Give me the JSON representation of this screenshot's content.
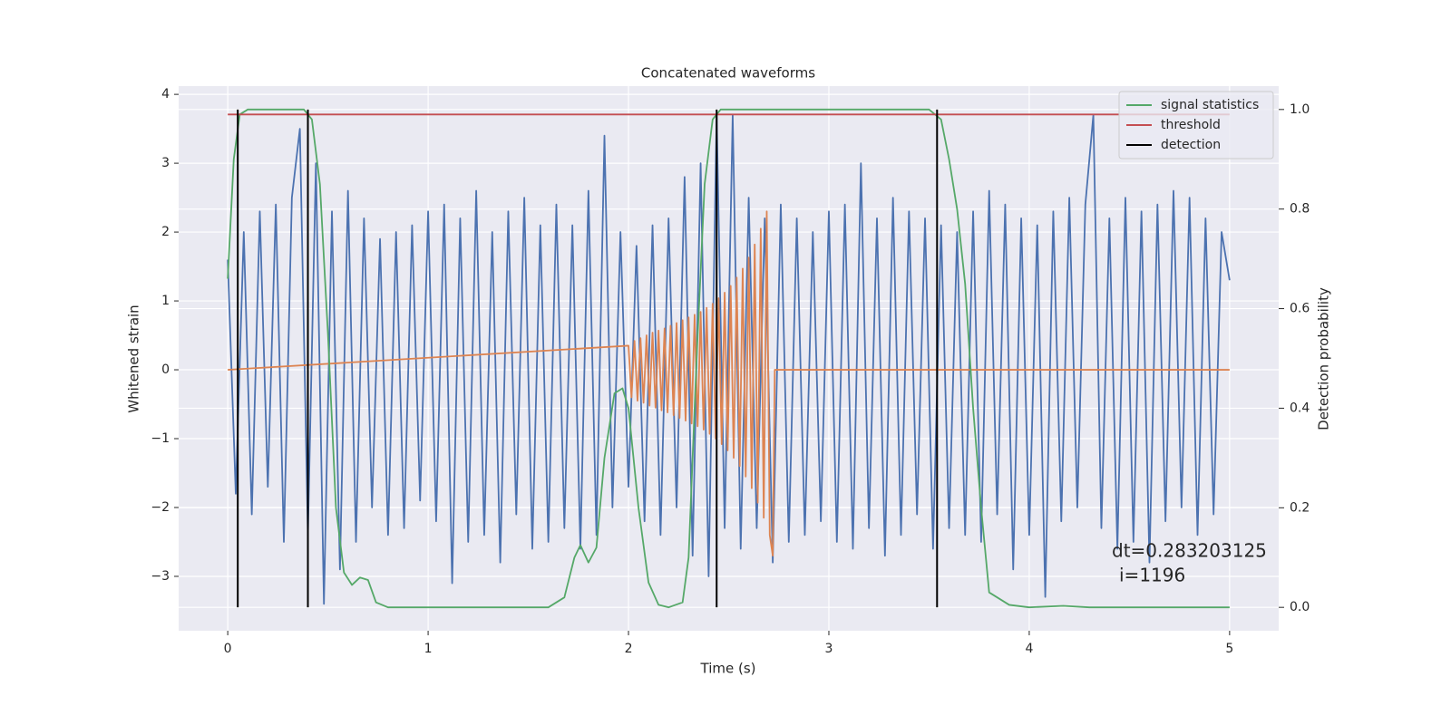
{
  "chart_data": {
    "type": "line",
    "title": "Concatenated waveforms",
    "x_label": "Time (s)",
    "y_label": "Whitened strain",
    "y2_label": "Detection probability",
    "annotations": [
      "dt=0.283203125",
      "i=1196"
    ],
    "xlim": [
      -0.245,
      5.245
    ],
    "xticks": [
      0,
      1,
      2,
      3,
      4,
      5
    ],
    "ylim": [
      -3.79,
      4.12
    ],
    "yticks": [
      -3,
      -2,
      -1,
      0,
      1,
      2,
      3,
      4
    ],
    "y2lim": [
      -0.047,
      1.047
    ],
    "y2ticks": [
      {
        "value": 0,
        "label": "0.0"
      },
      {
        "value": 0.2,
        "label": "0.2"
      },
      {
        "value": 0.4,
        "label": "0.4"
      },
      {
        "value": 0.6,
        "label": "0.6"
      },
      {
        "value": 0.8,
        "label": "0.8"
      },
      {
        "value": 1,
        "label": "1.0"
      }
    ],
    "grid": true,
    "legend": "upper right",
    "series": [
      {
        "color": "#4c72b0",
        "x": [
          0,
          0.04,
          0.08,
          0.12,
          0.16,
          0.2,
          0.24,
          0.28,
          0.32,
          0.36,
          0.4,
          0.44,
          0.48,
          0.52,
          0.56,
          0.6,
          0.64,
          0.68,
          0.72,
          0.76,
          0.8,
          0.84,
          0.88,
          0.92,
          0.96,
          1,
          1.04,
          1.08,
          1.12,
          1.16,
          1.2,
          1.24,
          1.28,
          1.32,
          1.36,
          1.4,
          1.44,
          1.48,
          1.52,
          1.56,
          1.6,
          1.64,
          1.68,
          1.72,
          1.76,
          1.8,
          1.84,
          1.88,
          1.92,
          1.96,
          2,
          2.04,
          2.08,
          2.12,
          2.16,
          2.2,
          2.24,
          2.28,
          2.32,
          2.36,
          2.4,
          2.44,
          2.48,
          2.52,
          2.56,
          2.6,
          2.64,
          2.68,
          2.72,
          2.76,
          2.8,
          2.84,
          2.88,
          2.92,
          2.96,
          3,
          3.04,
          3.08,
          3.12,
          3.16,
          3.2,
          3.24,
          3.28,
          3.32,
          3.36,
          3.4,
          3.44,
          3.48,
          3.52,
          3.56,
          3.6,
          3.64,
          3.68,
          3.72,
          3.76,
          3.8,
          3.84,
          3.88,
          3.92,
          3.96,
          4,
          4.04,
          4.08,
          4.12,
          4.16,
          4.2,
          4.24,
          4.28,
          4.32,
          4.36,
          4.4,
          4.44,
          4.48,
          4.52,
          4.56,
          4.6,
          4.64,
          4.68,
          4.72,
          4.76,
          4.8,
          4.84,
          4.88,
          4.92,
          4.96,
          5
        ],
        "values": [
          1.6,
          -1.8,
          2.0,
          -2.1,
          2.3,
          -1.7,
          2.4,
          -2.5,
          2.5,
          3.5,
          -2.4,
          3.0,
          -3.4,
          2.3,
          -2.9,
          2.6,
          -2.5,
          2.2,
          -2.0,
          1.9,
          -2.4,
          2.0,
          -2.3,
          2.1,
          -1.9,
          2.3,
          -2.2,
          2.4,
          -3.1,
          2.2,
          -2.5,
          2.6,
          -2.4,
          2.0,
          -2.8,
          2.3,
          -2.1,
          2.5,
          -2.6,
          2.1,
          -2.5,
          2.4,
          -2.3,
          2.1,
          -2.6,
          2.6,
          -2.4,
          3.4,
          -2.0,
          2.0,
          -1.7,
          1.8,
          -2.2,
          2.1,
          -2.4,
          2.2,
          -2.0,
          2.8,
          -2.7,
          3.0,
          -3.0,
          3.7,
          -2.3,
          3.7,
          -2.6,
          2.5,
          -2.3,
          2.2,
          -2.8,
          2.4,
          -2.5,
          2.2,
          -2.4,
          2.0,
          -2.2,
          2.3,
          -2.5,
          2.4,
          -2.6,
          3.0,
          -2.3,
          2.2,
          -2.7,
          2.5,
          -2.4,
          2.3,
          -2.1,
          2.2,
          -2.6,
          2.1,
          -2.3,
          2.0,
          -2.4,
          2.3,
          -2.5,
          2.6,
          -2.1,
          2.4,
          -2.9,
          2.2,
          -2.4,
          2.1,
          -3.3,
          2.3,
          -2.2,
          2.5,
          -2.0,
          2.4,
          3.7,
          -2.3,
          2.2,
          -2.6,
          2.5,
          -2.5,
          2.3,
          -2.8,
          2.4,
          -2.2,
          2.6,
          -2.0,
          2.5,
          -2.4,
          2.2,
          -2.1,
          2.0,
          1.3
        ]
      },
      {
        "color": "#dd8452",
        "x": [
          0,
          2.0,
          2.015,
          2.03,
          2.045,
          2.06,
          2.075,
          2.09,
          2.105,
          2.12,
          2.135,
          2.15,
          2.165,
          2.18,
          2.195,
          2.21,
          2.225,
          2.24,
          2.255,
          2.27,
          2.285,
          2.3,
          2.315,
          2.33,
          2.345,
          2.36,
          2.375,
          2.39,
          2.405,
          2.42,
          2.435,
          2.45,
          2.465,
          2.48,
          2.495,
          2.51,
          2.525,
          2.54,
          2.555,
          2.57,
          2.585,
          2.6,
          2.615,
          2.63,
          2.645,
          2.66,
          2.675,
          2.69,
          2.705,
          2.72,
          2.73,
          5
        ],
        "values": [
          0,
          0.35,
          -0.4,
          0.42,
          -0.45,
          0.46,
          -0.48,
          0.5,
          -0.52,
          0.54,
          -0.55,
          0.57,
          -0.59,
          0.6,
          -0.62,
          0.64,
          -0.66,
          0.68,
          -0.7,
          0.72,
          -0.74,
          0.76,
          -0.78,
          0.8,
          -0.82,
          0.84,
          -0.87,
          0.9,
          -0.93,
          0.96,
          -1.0,
          1.04,
          -1.08,
          1.12,
          -1.17,
          1.22,
          -1.28,
          1.34,
          -1.4,
          1.47,
          -1.55,
          1.63,
          -1.72,
          1.82,
          -1.93,
          2.05,
          -2.15,
          2.3,
          -2.4,
          -2.7,
          0,
          0
        ]
      },
      {
        "name": "signal statistics",
        "color": "#55a868",
        "axis": "y2",
        "x": [
          0,
          0.03,
          0.06,
          0.1,
          0.38,
          0.42,
          0.46,
          0.5,
          0.54,
          0.58,
          0.62,
          0.66,
          0.7,
          0.74,
          0.8,
          1.0,
          1.6,
          1.68,
          1.73,
          1.76,
          1.8,
          1.84,
          1.88,
          1.93,
          1.97,
          2.0,
          2.05,
          2.1,
          2.15,
          2.2,
          2.27,
          2.3,
          2.34,
          2.38,
          2.42,
          2.46,
          3.5,
          3.56,
          3.6,
          3.64,
          3.68,
          3.72,
          3.76,
          3.8,
          3.9,
          4.0,
          4.17,
          4.3,
          5.0
        ],
        "values": [
          0.66,
          0.9,
          0.99,
          1.0,
          1.0,
          0.98,
          0.85,
          0.55,
          0.2,
          0.07,
          0.045,
          0.06,
          0.055,
          0.01,
          0.0,
          0.0,
          0.0,
          0.02,
          0.1,
          0.125,
          0.09,
          0.12,
          0.3,
          0.43,
          0.44,
          0.4,
          0.2,
          0.05,
          0.005,
          0.0,
          0.01,
          0.1,
          0.5,
          0.85,
          0.98,
          1.0,
          1.0,
          0.98,
          0.9,
          0.8,
          0.65,
          0.4,
          0.2,
          0.03,
          0.005,
          0.0,
          0.003,
          0.0,
          0.0
        ]
      },
      {
        "name": "threshold",
        "color": "#c44e52",
        "axis": "y2",
        "x": [
          0,
          5
        ],
        "values": [
          0.99,
          0.99
        ]
      },
      {
        "name": "detection",
        "color": "#000000",
        "axis": "y2",
        "kind": "stem",
        "x": [
          0.05,
          0.4,
          2.44,
          3.54
        ],
        "values": [
          1,
          1,
          1,
          1
        ]
      }
    ]
  }
}
